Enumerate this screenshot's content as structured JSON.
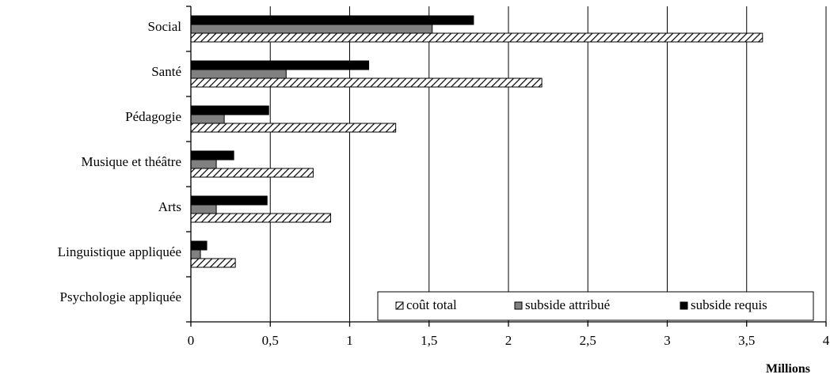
{
  "chart_data": {
    "type": "bar",
    "orientation": "horizontal",
    "categories": [
      "Social",
      "Santé",
      "Pédagogie",
      "Musique et théâtre",
      "Arts",
      "Linguistique appliquée",
      "Psychologie appliquée"
    ],
    "series": [
      {
        "name": "subside requis",
        "color": "#000000",
        "pattern": "solid",
        "values": [
          1.78,
          1.12,
          0.49,
          0.27,
          0.48,
          0.1,
          0
        ]
      },
      {
        "name": "subside attribué",
        "color": "#808080",
        "pattern": "solid",
        "values": [
          1.52,
          0.6,
          0.21,
          0.16,
          0.16,
          0.06,
          0
        ]
      },
      {
        "name": "coût total",
        "color": "#ffffff",
        "pattern": "diagonal-hatch",
        "values": [
          3.6,
          2.21,
          1.29,
          0.77,
          0.88,
          0.28,
          0
        ]
      }
    ],
    "legend_order": [
      "coût total",
      "subside attribué",
      "subside requis"
    ],
    "xlim": [
      0,
      4
    ],
    "x_ticks": [
      "0",
      "0,5",
      "1",
      "1,5",
      "2",
      "2,5",
      "3",
      "3,5",
      "4"
    ],
    "x_unit_label": "Millions",
    "grid": "vertical",
    "legend_placement": "bottom-right"
  }
}
